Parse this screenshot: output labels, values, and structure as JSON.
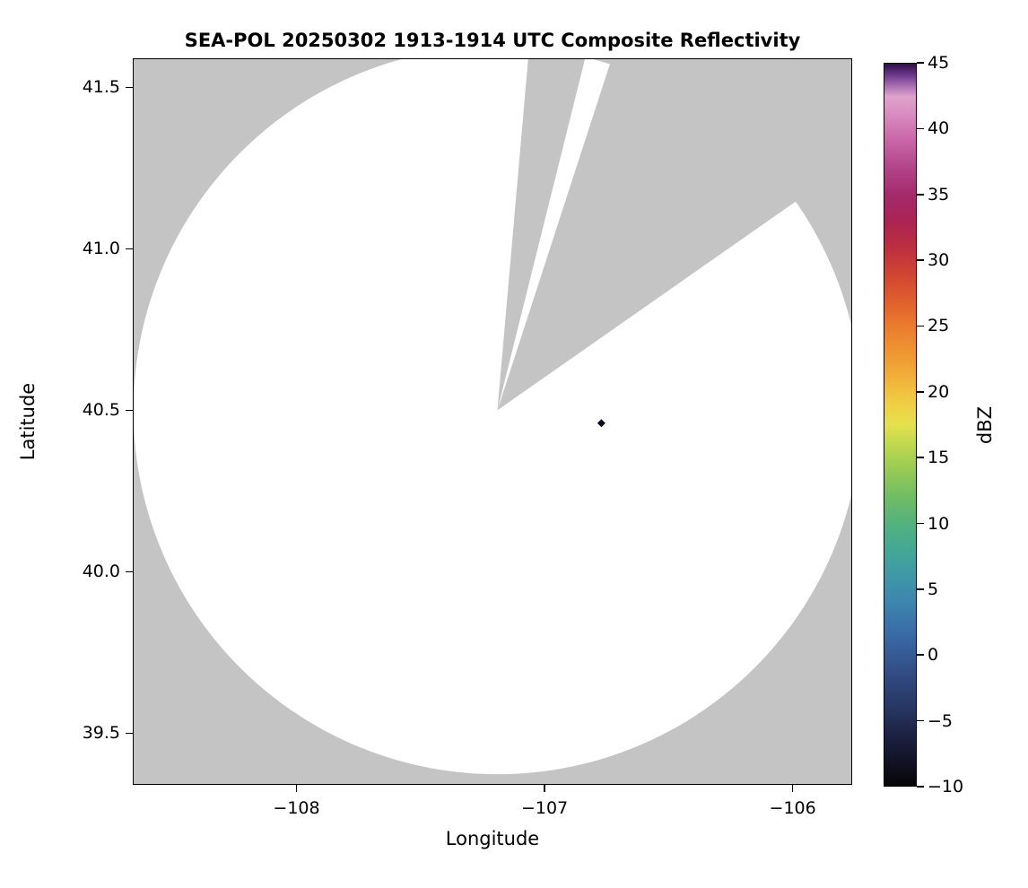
{
  "chart_data": {
    "type": "heatmap",
    "subtype": "radar-composite-reflectivity",
    "title": "SEA-POL 20250302 1913-1914 UTC Composite Reflectivity",
    "xlabel": "Longitude",
    "ylabel": "Latitude",
    "xlim": [
      -108.66,
      -105.76
    ],
    "ylim": [
      39.34,
      41.59
    ],
    "x_ticks": [
      -108,
      -107,
      -106
    ],
    "x_tick_labels": [
      "−108",
      "−107",
      "−106"
    ],
    "y_ticks": [
      39.5,
      40.0,
      40.5,
      41.0,
      41.5
    ],
    "y_tick_labels": [
      "39.5",
      "40.0",
      "40.5",
      "41.0",
      "41.5"
    ],
    "grid": false,
    "background_nodata_color": "#c4c4c4",
    "coverage_color": "#ffffff",
    "frame_color": "#000000",
    "radar": {
      "center_lon": -107.19,
      "center_lat": 40.5,
      "range_deg_lat": 1.13,
      "missing_sector_azimuths_deg": [
        [
          5,
          14
        ],
        [
          18,
          55
        ]
      ]
    },
    "echoes": [
      {
        "lon": -106.77,
        "lat": 40.46,
        "value_dbz": -8,
        "color": "#0d0d17",
        "marker": "diamond"
      }
    ],
    "colorbar": {
      "label": "dBZ",
      "min": -10,
      "max": 45,
      "orientation": "vertical",
      "position": "right",
      "ticks": [
        45,
        40,
        35,
        30,
        25,
        20,
        15,
        10,
        5,
        0,
        -5,
        -10
      ],
      "tick_labels": [
        "45",
        "40",
        "35",
        "30",
        "25",
        "20",
        "15",
        "10",
        "5",
        "0",
        "−5",
        "−10"
      ],
      "gradient_stops": [
        [
          -10,
          "#060606"
        ],
        [
          -8,
          "#131327"
        ],
        [
          -6,
          "#1d2344"
        ],
        [
          -4,
          "#273763"
        ],
        [
          -2,
          "#2f477c"
        ],
        [
          0,
          "#365a96"
        ],
        [
          2,
          "#3a70a8"
        ],
        [
          4,
          "#3d85ae"
        ],
        [
          6,
          "#3f98a8"
        ],
        [
          8,
          "#44a895"
        ],
        [
          10,
          "#53b27d"
        ],
        [
          12,
          "#70bd64"
        ],
        [
          14,
          "#96ca55"
        ],
        [
          16,
          "#c0d84e"
        ],
        [
          17.5,
          "#e4e14e"
        ],
        [
          19,
          "#efd044"
        ],
        [
          21,
          "#f1b23a"
        ],
        [
          23,
          "#ef9631"
        ],
        [
          25,
          "#ea7b2d"
        ],
        [
          27,
          "#df5e2d"
        ],
        [
          29,
          "#d04433"
        ],
        [
          31,
          "#bd2e40"
        ],
        [
          33,
          "#aa2453"
        ],
        [
          35,
          "#a52a6b"
        ],
        [
          37,
          "#b24389"
        ],
        [
          39,
          "#c763a5"
        ],
        [
          41,
          "#d989bf"
        ],
        [
          42.5,
          "#dfa3cd"
        ],
        [
          43.3,
          "#a96fb0"
        ],
        [
          44.1,
          "#6f3a8e"
        ],
        [
          45,
          "#2f0e45"
        ]
      ]
    }
  }
}
